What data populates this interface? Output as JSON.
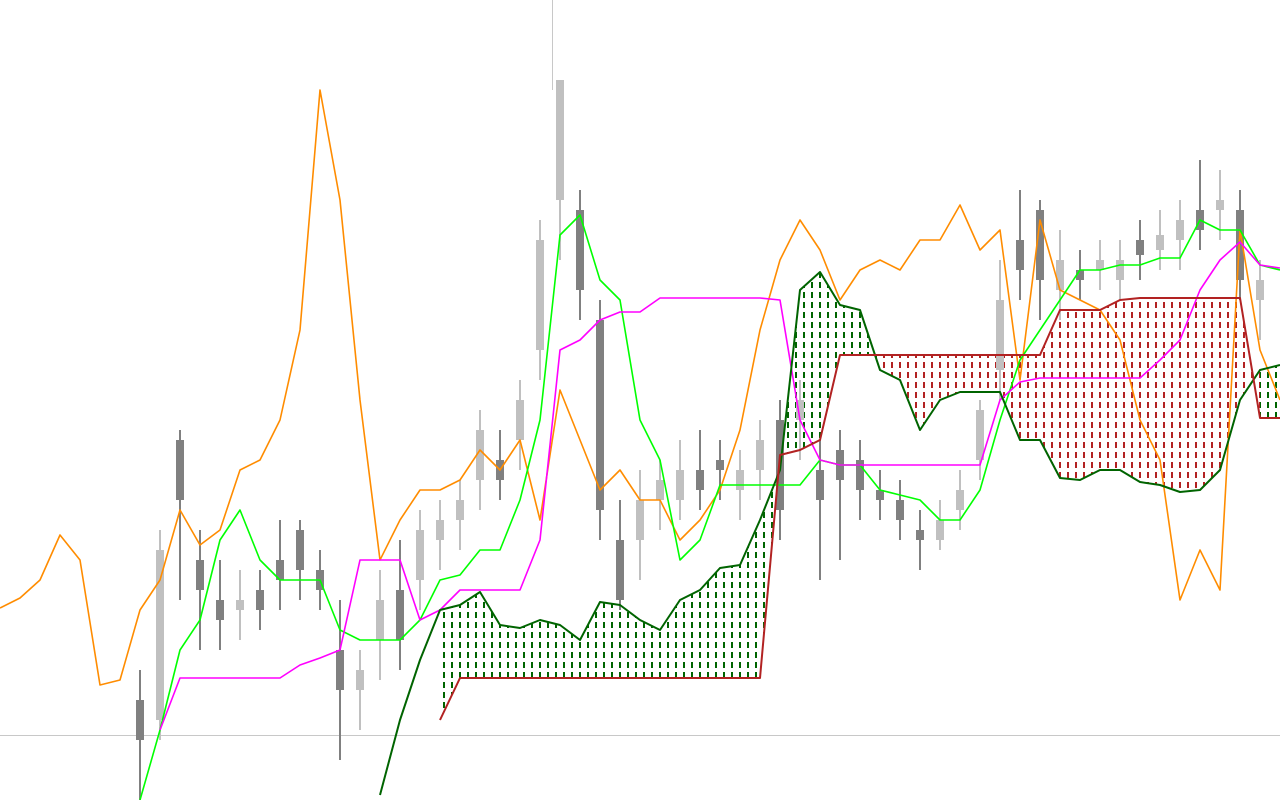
{
  "chart_data": {
    "type": "ichimoku",
    "xlim": [
      0,
      64
    ],
    "ylim": [
      0,
      800
    ],
    "x": [
      0,
      1,
      2,
      3,
      4,
      5,
      6,
      7,
      8,
      9,
      10,
      11,
      12,
      13,
      14,
      15,
      16,
      17,
      18,
      19,
      20,
      21,
      22,
      23,
      24,
      25,
      26,
      27,
      28,
      29,
      30,
      31,
      32,
      33,
      34,
      35,
      36,
      37,
      38,
      39,
      40,
      41,
      42,
      43,
      44,
      45,
      46,
      47,
      48,
      49,
      50,
      51,
      52,
      53,
      54,
      55,
      56,
      57,
      58,
      59,
      60,
      61,
      62,
      63,
      64
    ],
    "series": [
      {
        "color": "#ff8c00",
        "values": [
          192,
          202,
          220,
          265,
          240,
          115,
          120,
          190,
          220,
          290,
          255,
          270,
          330,
          340,
          380,
          470,
          710,
          600,
          400,
          240,
          280,
          310,
          310,
          320,
          350,
          330,
          360,
          280,
          410,
          360,
          310,
          330,
          300,
          300,
          260,
          280,
          310,
          370,
          470,
          540,
          580,
          550,
          500,
          530,
          540,
          530,
          560,
          560,
          595,
          550,
          570,
          420,
          580,
          510,
          500,
          490,
          460,
          380,
          340,
          200,
          250,
          210,
          570,
          450,
          400
        ]
      },
      {
        "color": "#00ff00",
        "values": [
          null,
          null,
          null,
          null,
          null,
          null,
          null,
          0,
          70,
          150,
          180,
          260,
          290,
          240,
          220,
          220,
          220,
          170,
          160,
          160,
          160,
          180,
          220,
          225,
          250,
          250,
          300,
          380,
          565,
          585,
          520,
          500,
          380,
          340,
          240,
          260,
          315,
          315,
          315,
          315,
          315,
          340,
          335,
          335,
          310,
          305,
          300,
          280,
          280,
          310,
          380,
          440,
          470,
          500,
          530,
          530,
          535,
          535,
          542,
          542,
          580,
          570,
          570,
          535,
          530
        ]
      },
      {
        "color": "#ff00ff",
        "values": [
          null,
          null,
          null,
          null,
          null,
          null,
          null,
          null,
          70,
          122,
          122,
          122,
          122,
          122,
          122,
          135,
          142,
          150,
          240,
          240,
          240,
          180,
          190,
          210,
          210,
          210,
          210,
          260,
          450,
          460,
          480,
          488,
          488,
          502,
          502,
          502,
          502,
          502,
          502,
          500,
          380,
          340,
          335,
          335,
          335,
          335,
          335,
          335,
          335,
          335,
          400,
          418,
          422,
          422,
          422,
          422,
          422,
          422,
          440,
          460,
          510,
          540,
          558,
          535,
          532
        ]
      },
      {
        "color": "#006400",
        "values": [
          null,
          null,
          null,
          null,
          null,
          null,
          null,
          null,
          null,
          null,
          null,
          null,
          null,
          null,
          null,
          null,
          null,
          null,
          null,
          5,
          80,
          140,
          190,
          195,
          208,
          175,
          172,
          180,
          175,
          160,
          198,
          195,
          180,
          170,
          200,
          210,
          232,
          235,
          280,
          330,
          510,
          528,
          495,
          490,
          430,
          420,
          370,
          400,
          408,
          408,
          408,
          360,
          360,
          322,
          320,
          330,
          330,
          318,
          315,
          308,
          310,
          330,
          400,
          430,
          435
        ]
      },
      {
        "color": "#b22222",
        "values": [
          null,
          null,
          null,
          null,
          null,
          null,
          null,
          null,
          null,
          null,
          null,
          null,
          null,
          null,
          null,
          null,
          null,
          null,
          null,
          null,
          null,
          null,
          80,
          122,
          122,
          122,
          122,
          122,
          122,
          122,
          122,
          122,
          122,
          122,
          122,
          122,
          122,
          122,
          122,
          345,
          350,
          360,
          445,
          445,
          445,
          445,
          445,
          445,
          445,
          445,
          445,
          445,
          445,
          490,
          490,
          490,
          500,
          502,
          502,
          502,
          502,
          502,
          502,
          382,
          382
        ]
      }
    ],
    "candles": {
      "up_color": "#c0c0c0",
      "down_color": "#808080",
      "x": [
        7,
        8,
        9,
        10,
        11,
        12,
        13,
        14,
        15,
        16,
        17,
        18,
        19,
        20,
        21,
        22,
        23,
        24,
        25,
        26,
        27,
        28,
        29,
        30,
        31,
        32,
        33,
        34,
        35,
        36,
        37,
        38,
        39,
        40,
        41,
        42,
        43,
        44,
        45,
        46,
        47,
        48,
        49,
        50,
        51,
        52,
        53,
        54,
        55,
        56,
        57,
        58,
        59,
        60,
        61,
        62,
        63
      ],
      "open": [
        100,
        80,
        360,
        240,
        200,
        190,
        210,
        240,
        270,
        230,
        150,
        110,
        160,
        210,
        220,
        260,
        280,
        320,
        340,
        360,
        450,
        600,
        590,
        480,
        260,
        260,
        300,
        300,
        330,
        340,
        310,
        330,
        380,
        380,
        330,
        350,
        340,
        310,
        300,
        270,
        260,
        290,
        340,
        430,
        560,
        590,
        510,
        530,
        530,
        520,
        560,
        550,
        560,
        590,
        590,
        590,
        500
      ],
      "high": [
        130,
        270,
        370,
        270,
        240,
        230,
        230,
        280,
        280,
        250,
        200,
        150,
        230,
        260,
        290,
        300,
        320,
        390,
        370,
        420,
        580,
        720,
        610,
        500,
        300,
        330,
        340,
        360,
        370,
        360,
        350,
        380,
        400,
        420,
        360,
        370,
        360,
        330,
        320,
        290,
        300,
        330,
        400,
        540,
        610,
        600,
        570,
        550,
        560,
        560,
        580,
        590,
        600,
        640,
        630,
        610,
        540
      ],
      "low": [
        0,
        60,
        200,
        150,
        150,
        160,
        170,
        190,
        200,
        190,
        40,
        70,
        120,
        130,
        190,
        230,
        250,
        290,
        300,
        330,
        420,
        540,
        480,
        260,
        190,
        220,
        270,
        280,
        290,
        300,
        280,
        300,
        260,
        340,
        220,
        240,
        280,
        280,
        260,
        230,
        250,
        270,
        320,
        400,
        500,
        480,
        480,
        500,
        510,
        500,
        520,
        530,
        530,
        550,
        560,
        500,
        460
      ],
      "close": [
        60,
        250,
        300,
        210,
        180,
        200,
        190,
        220,
        230,
        210,
        110,
        130,
        200,
        160,
        270,
        280,
        300,
        370,
        320,
        400,
        560,
        720,
        510,
        290,
        200,
        300,
        320,
        330,
        310,
        330,
        330,
        360,
        290,
        400,
        300,
        320,
        310,
        300,
        280,
        260,
        280,
        310,
        390,
        500,
        530,
        520,
        540,
        520,
        540,
        540,
        545,
        565,
        580,
        570,
        600,
        520,
        520
      ]
    }
  }
}
